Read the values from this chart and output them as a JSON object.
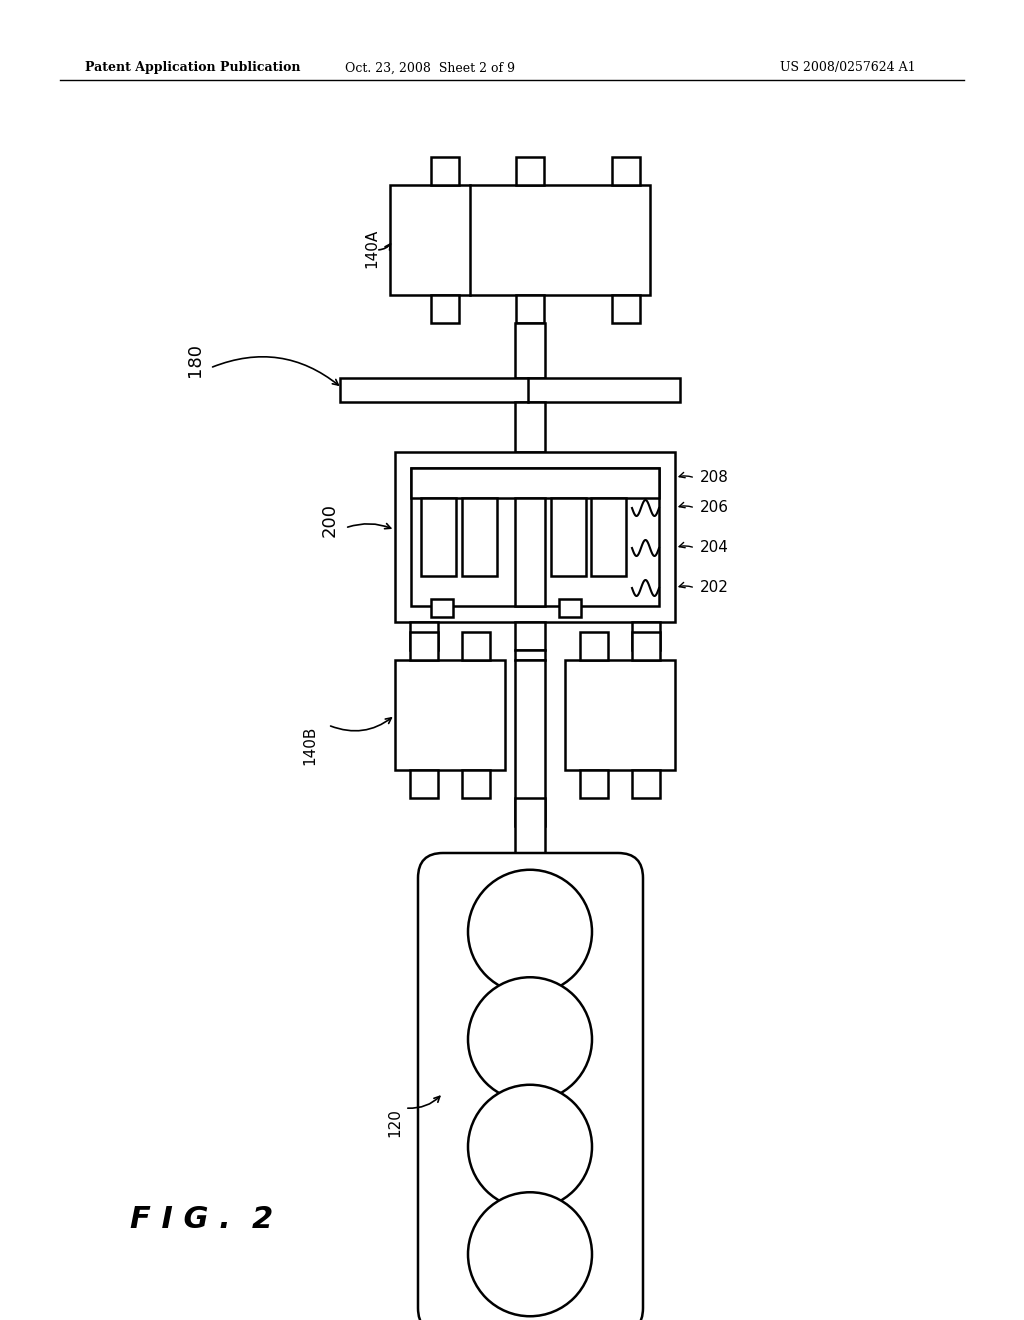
{
  "bg_color": "#ffffff",
  "line_color": "#000000",
  "header_left": "Patent Application Publication",
  "header_mid": "Oct. 23, 2008  Sheet 2 of 9",
  "header_right": "US 2008/0257624 A1",
  "fig_label": "F I G .  2"
}
